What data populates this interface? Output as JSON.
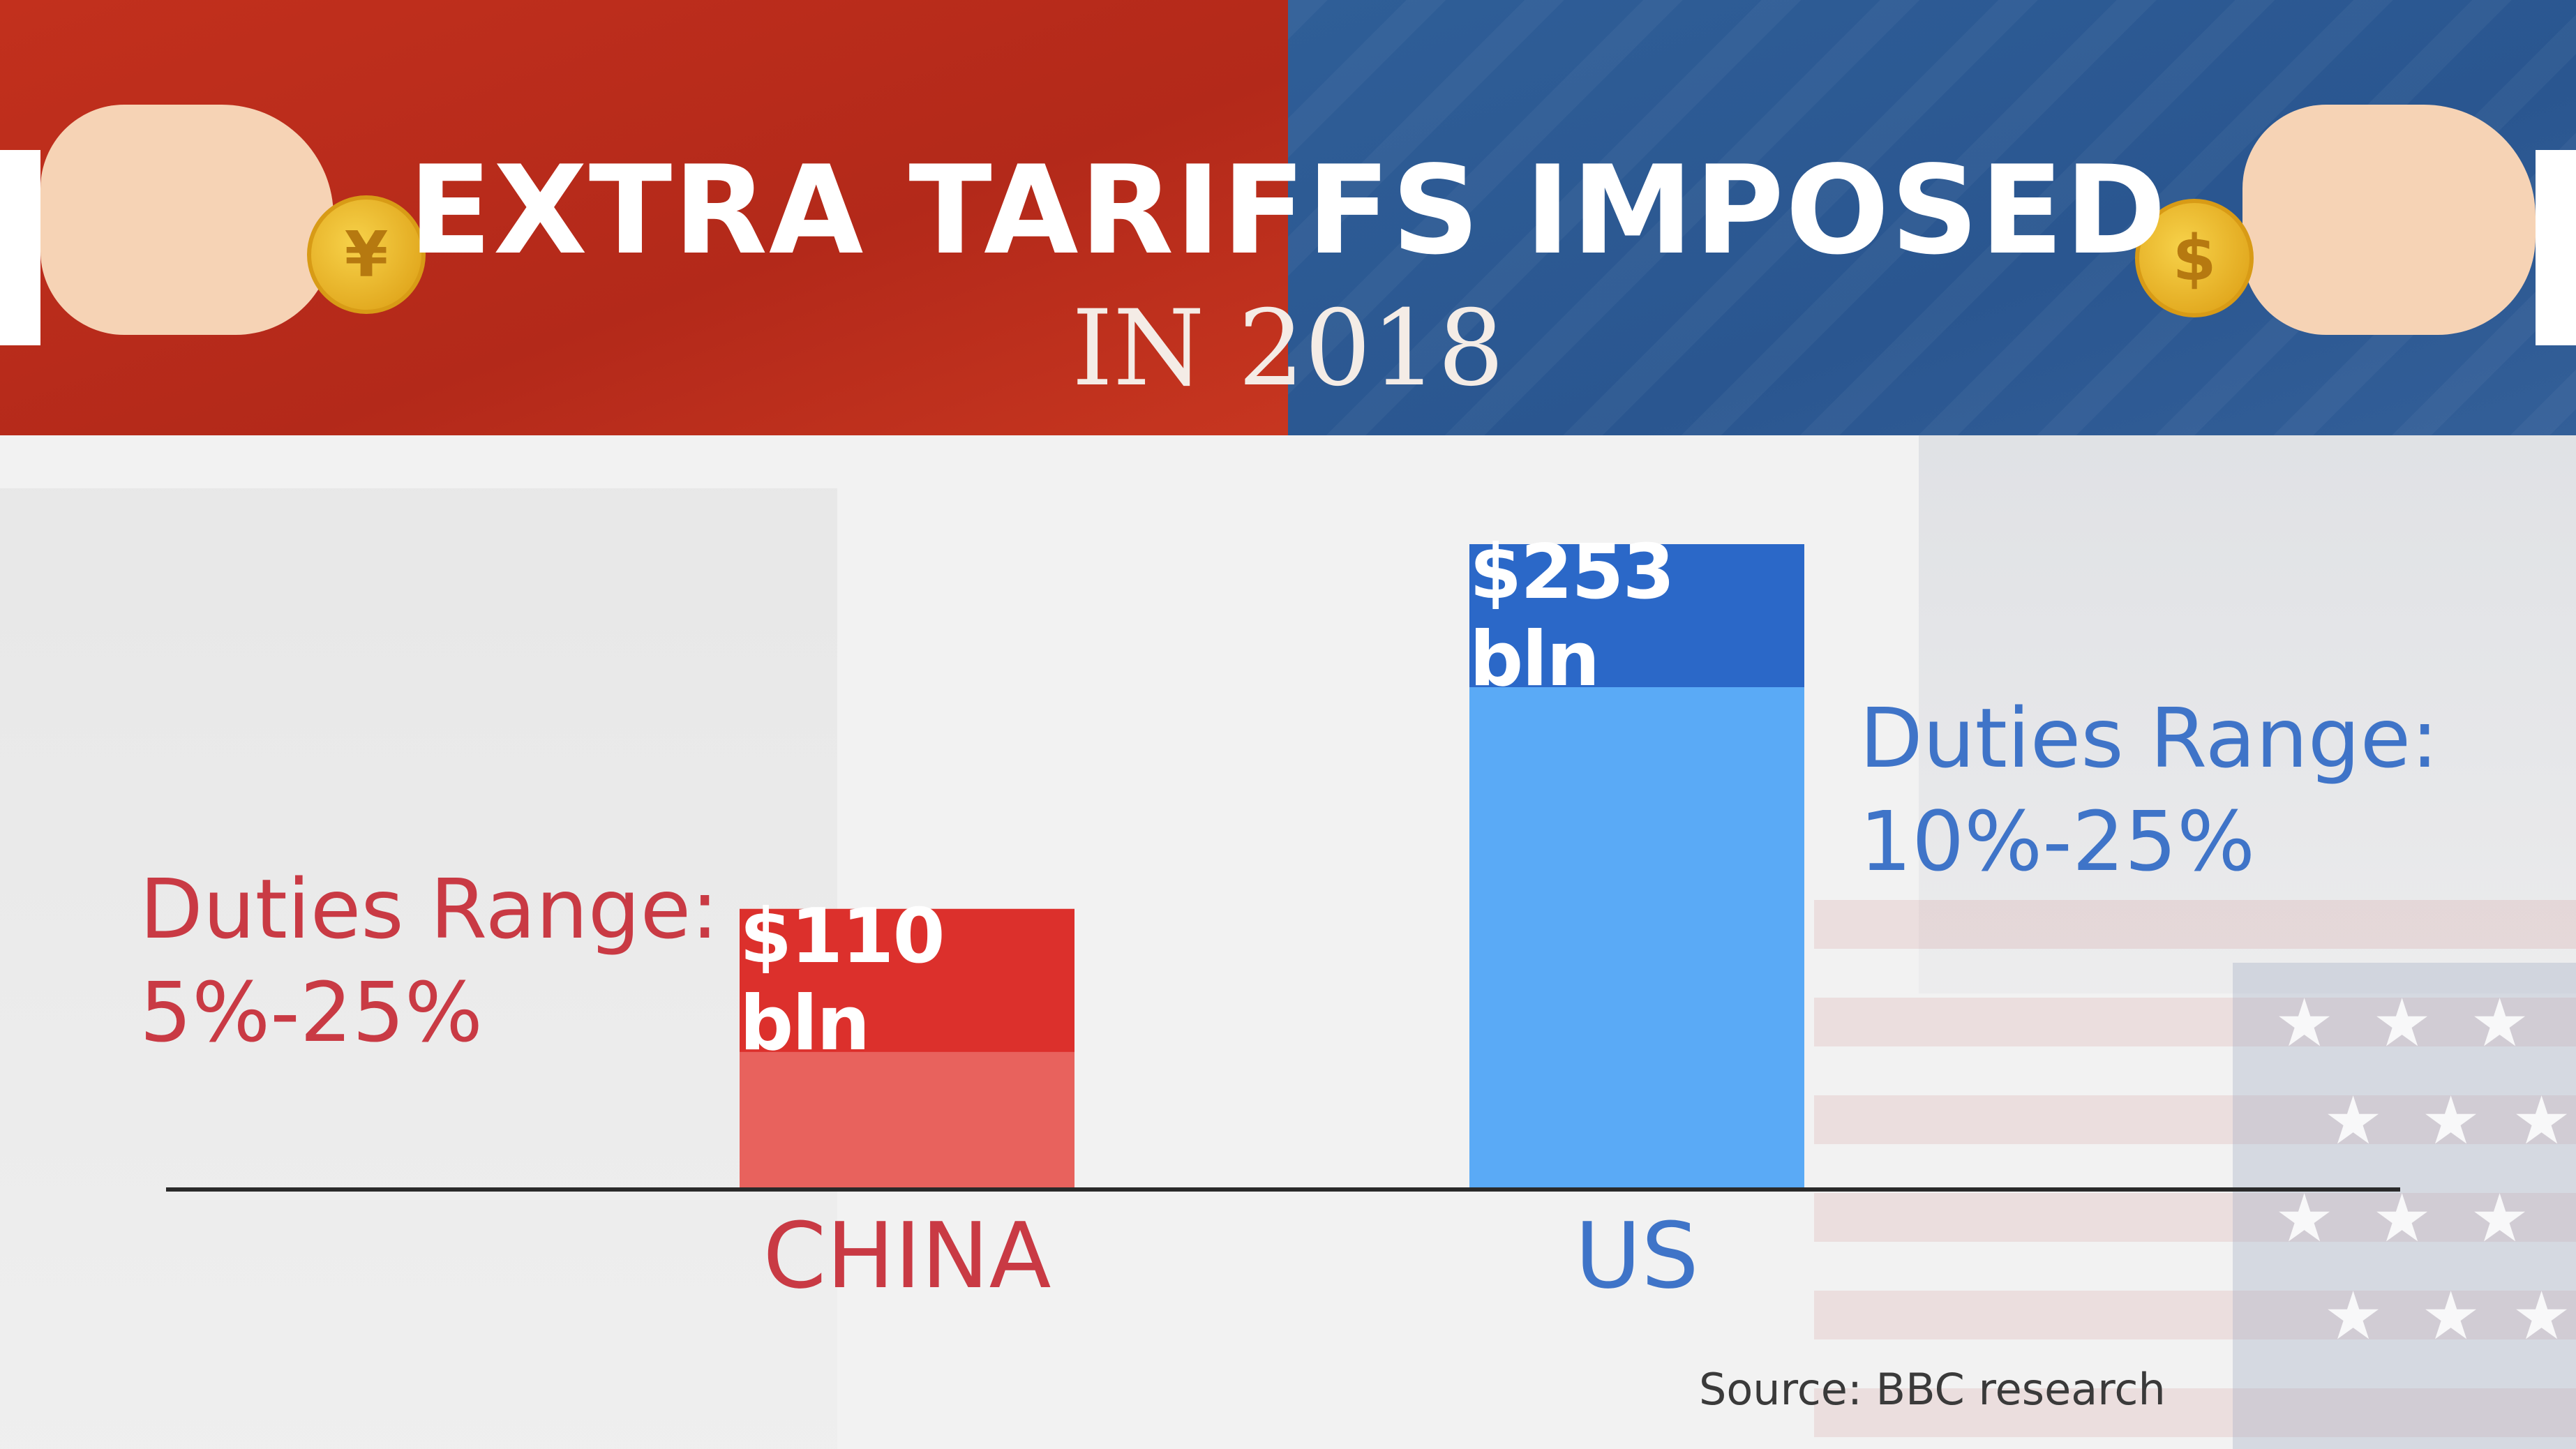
{
  "header": {
    "title": "EXTRA TARIFFS IMPOSED",
    "subtitle": "IN 2018"
  },
  "colors": {
    "china_header": "#c2301d",
    "us_header": "#2f5e97",
    "china_bar": "#e8625d",
    "china_bar_cap": "#dc302c",
    "us_bar": "#5aaaf6",
    "us_bar_cap": "#2b68c8",
    "china_text": "#c93a44",
    "us_text": "#3f74c8"
  },
  "icons": {
    "left_coin": "yuan-coin-icon",
    "right_coin": "dollar-coin-icon",
    "left_coin_glyph": "¥",
    "right_coin_glyph": "$"
  },
  "chart_data": {
    "type": "bar",
    "title": "EXTRA TARIFFS IMPOSED",
    "subtitle": "IN 2018",
    "categories": [
      "CHINA",
      "US"
    ],
    "values": [
      110,
      253
    ],
    "data_labels": [
      "$110 bln",
      "$253 bln"
    ],
    "ylim": [
      0,
      253
    ],
    "grid": false,
    "legend": "none",
    "annotations": [
      {
        "category": "CHINA",
        "line1": "Duties Range:",
        "line2": "5%-25%"
      },
      {
        "category": "US",
        "line1": "Duties Range:",
        "line2": "10%-25%"
      }
    ]
  },
  "footer": {
    "source": "Source: BBC research"
  }
}
